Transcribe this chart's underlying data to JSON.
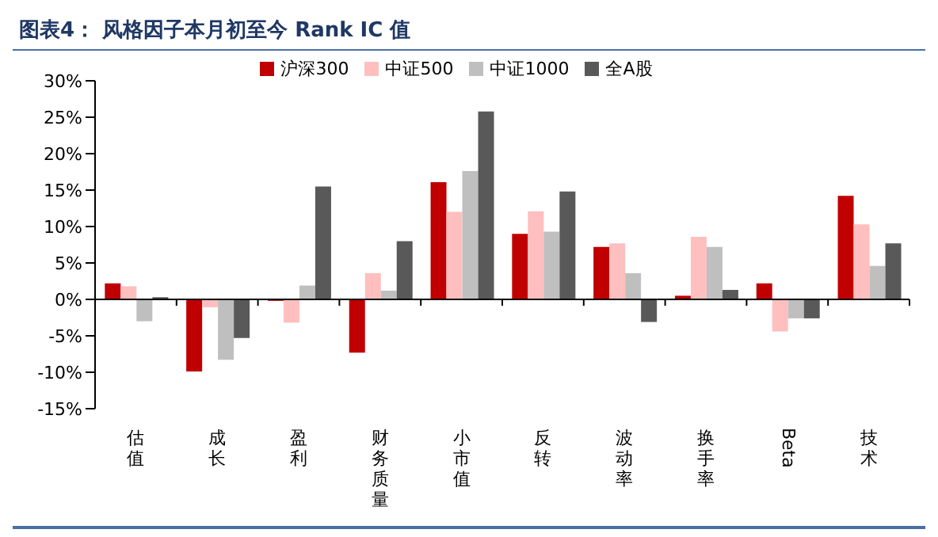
{
  "chart_data": {
    "type": "bar",
    "title": "图表4：  风格因子本月初至今 Rank IC 值",
    "categories": [
      "估值",
      "成长",
      "盈利",
      "财务质量",
      "小市值",
      "反转",
      "波动率",
      "换手率",
      "Beta",
      "技术"
    ],
    "series": [
      {
        "name": "沪深300",
        "color": "#c00000",
        "values": [
          2.2,
          -9.9,
          -0.2,
          -7.3,
          16.1,
          9.0,
          7.2,
          0.5,
          2.2,
          14.2
        ]
      },
      {
        "name": "中证500",
        "color": "#ffbfbf",
        "values": [
          1.8,
          -1.1,
          -3.2,
          3.6,
          12.0,
          12.1,
          7.7,
          8.6,
          -4.4,
          10.3
        ]
      },
      {
        "name": "中证1000",
        "color": "#bfbfbf",
        "values": [
          -3.0,
          -8.3,
          1.9,
          1.2,
          17.6,
          9.3,
          3.6,
          7.2,
          -2.6,
          4.6
        ]
      },
      {
        "name": "全A股",
        "color": "#595959",
        "values": [
          0.3,
          -5.3,
          15.5,
          8.0,
          25.8,
          14.8,
          -3.1,
          1.3,
          -2.6,
          7.7
        ]
      }
    ],
    "ylim": [
      -15,
      30
    ],
    "yticks": [
      {
        "value": -15,
        "label": "-15%"
      },
      {
        "value": -10,
        "label": "-10%"
      },
      {
        "value": -5,
        "label": "-5%"
      },
      {
        "value": 0,
        "label": "0%"
      },
      {
        "value": 5,
        "label": "5%"
      },
      {
        "value": 10,
        "label": "10%"
      },
      {
        "value": 15,
        "label": "15%"
      },
      {
        "value": 20,
        "label": "20%"
      },
      {
        "value": 25,
        "label": "25%"
      },
      {
        "value": 30,
        "label": "30%"
      }
    ],
    "ref_lines": [
      {
        "axis": "y",
        "value": 0,
        "color": "#000000"
      }
    ],
    "grid": false,
    "legend": "top"
  }
}
